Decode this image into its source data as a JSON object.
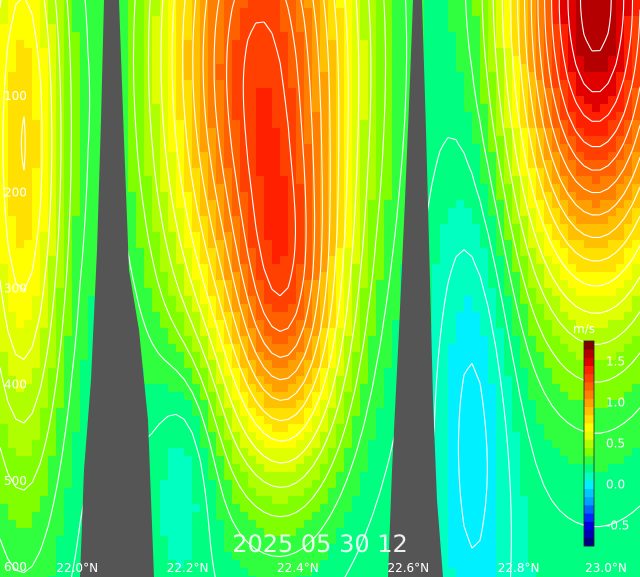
{
  "chart_data": {
    "type": "heatmap",
    "title": "",
    "timestamp": "2025 05 30 12",
    "xlabel": "",
    "ylabel": "",
    "units": "m/s",
    "x_ticks": [
      "22.0°N",
      "22.2°N",
      "22.4°N",
      "22.6°N",
      "22.8°N",
      "23.0°N"
    ],
    "x_tick_values": [
      22.0,
      22.2,
      22.4,
      22.6,
      22.8,
      23.0
    ],
    "xlim": [
      21.86,
      23.02
    ],
    "y_ticks": [
      "100",
      "200",
      "300",
      "400",
      "500",
      "600"
    ],
    "y_tick_values": [
      100,
      200,
      300,
      400,
      500,
      600
    ],
    "ylim": [
      600,
      0
    ],
    "colorbar": {
      "ticks": [
        "1.5",
        "1.0",
        "0.5",
        "0.0",
        "-0.5"
      ],
      "tick_values": [
        1.5,
        1.0,
        0.5,
        0.0,
        -0.5
      ],
      "range": [
        -0.75,
        1.75
      ],
      "colors": [
        "#000080",
        "#0000b4",
        "#0000dc",
        "#0028ff",
        "#0064ff",
        "#00a0ff",
        "#00c8ff",
        "#00f0ff",
        "#00ffc0",
        "#00ff80",
        "#30ff40",
        "#80ff00",
        "#b0ff00",
        "#e0ff00",
        "#ffff00",
        "#ffe000",
        "#ffc000",
        "#ffa000",
        "#ff8000",
        "#ff6000",
        "#ff4000",
        "#ff2000",
        "#e00000",
        "#b40000",
        "#800000"
      ]
    },
    "land_color": "#555555",
    "field": {
      "background": 0.15,
      "blobs": [
        {
          "name": "core-1",
          "lat": 22.33,
          "depth": 60,
          "amp": 1.15,
          "slat": 0.13,
          "sdepth": 230
        },
        {
          "name": "core-1-deep",
          "lat": 22.38,
          "depth": 330,
          "amp": 0.55,
          "slat": 0.07,
          "sdepth": 120
        },
        {
          "name": "core-2",
          "lat": 22.94,
          "depth": 0,
          "amp": 1.5,
          "slat": 0.11,
          "sdepth": 210
        },
        {
          "name": "west-band",
          "lat": 21.9,
          "depth": 150,
          "amp": 0.65,
          "slat": 0.06,
          "sdepth": 260
        },
        {
          "name": "south-low",
          "lat": 22.72,
          "depth": 430,
          "amp": -0.2,
          "slat": 0.05,
          "sdepth": 200
        },
        {
          "name": "gap-low",
          "lat": 22.2,
          "depth": 470,
          "amp": -0.15,
          "slat": 0.04,
          "sdepth": 80
        }
      ]
    },
    "contour_interval": 0.1,
    "negative_contours": "dashed"
  }
}
